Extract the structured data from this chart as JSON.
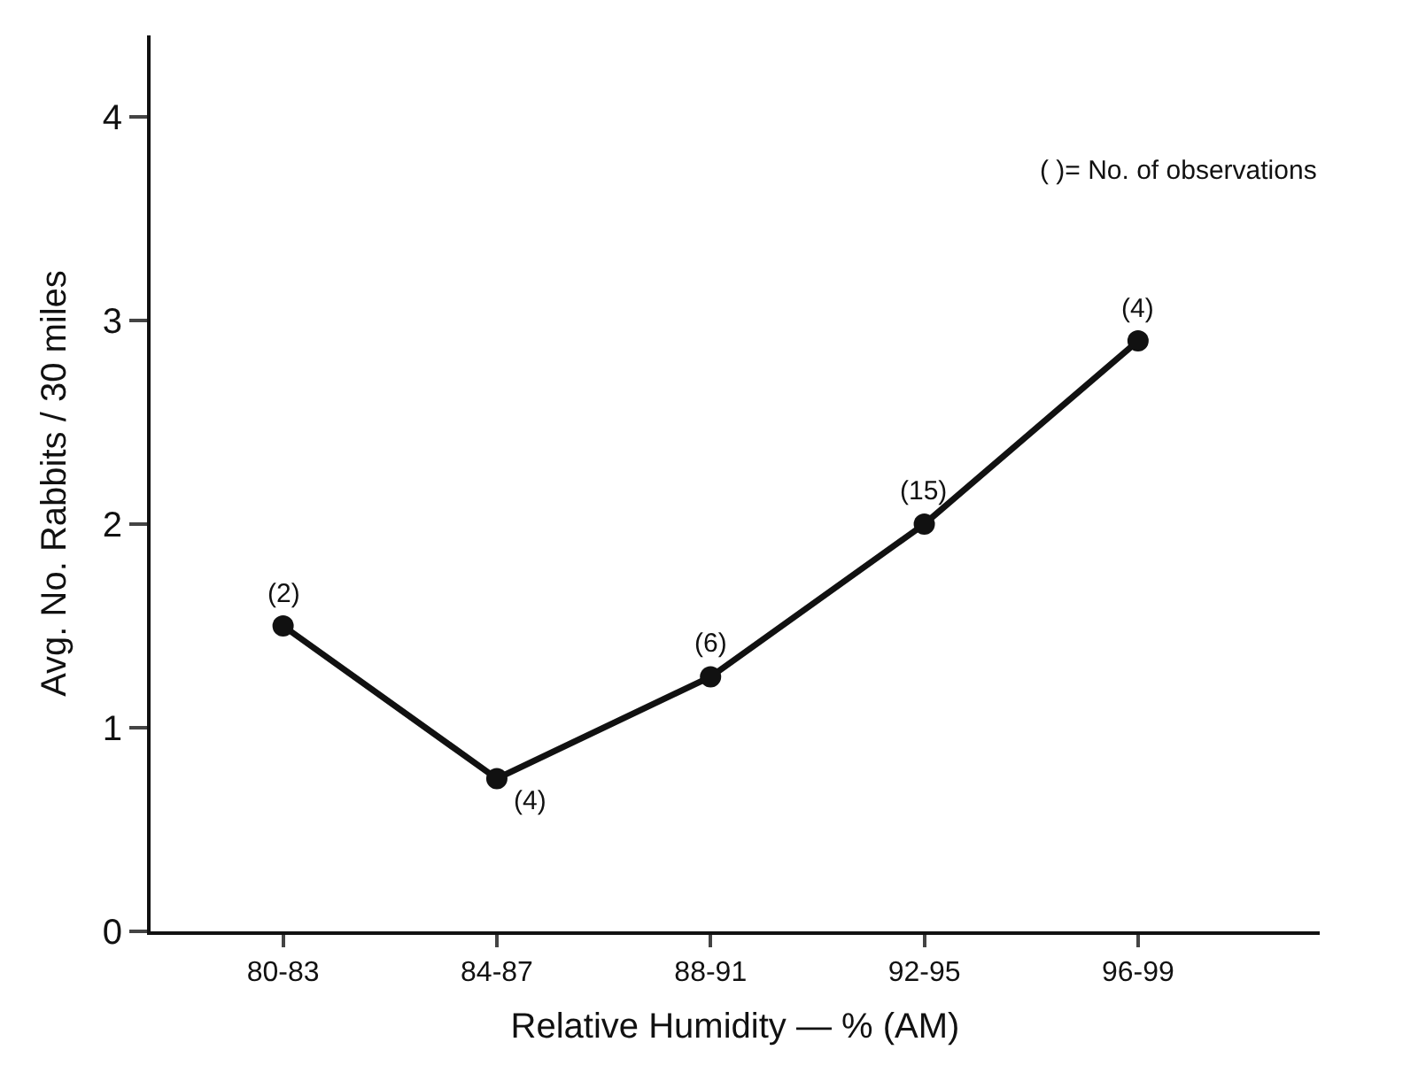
{
  "chart_data": {
    "type": "line",
    "xlabel": "Relative Humidity — % (AM)",
    "ylabel": "Avg. No. Rabbits / 30 miles",
    "categories": [
      "80-83",
      "84-87",
      "88-91",
      "92-95",
      "96-99"
    ],
    "series": [
      {
        "color": "#111111",
        "values": [
          1.5,
          0.75,
          1.25,
          2.0,
          2.9
        ]
      }
    ],
    "ylim": [
      0,
      4.4
    ],
    "yticks": [
      0,
      1,
      2,
      3,
      4
    ],
    "marker": "circle",
    "line_style": "solid",
    "annotations": [
      "( )= No. of observations",
      {
        "text": "(2)",
        "x": "80-83",
        "y": 1.5
      },
      {
        "text": "(4)",
        "x": "84-87",
        "y": 0.75
      },
      {
        "text": "(6)",
        "x": "88-91",
        "y": 1.25
      },
      {
        "text": "(15)",
        "x": "92-95",
        "y": 2.0
      },
      {
        "text": "(4)",
        "x": "96-99",
        "y": 2.9
      }
    ]
  }
}
